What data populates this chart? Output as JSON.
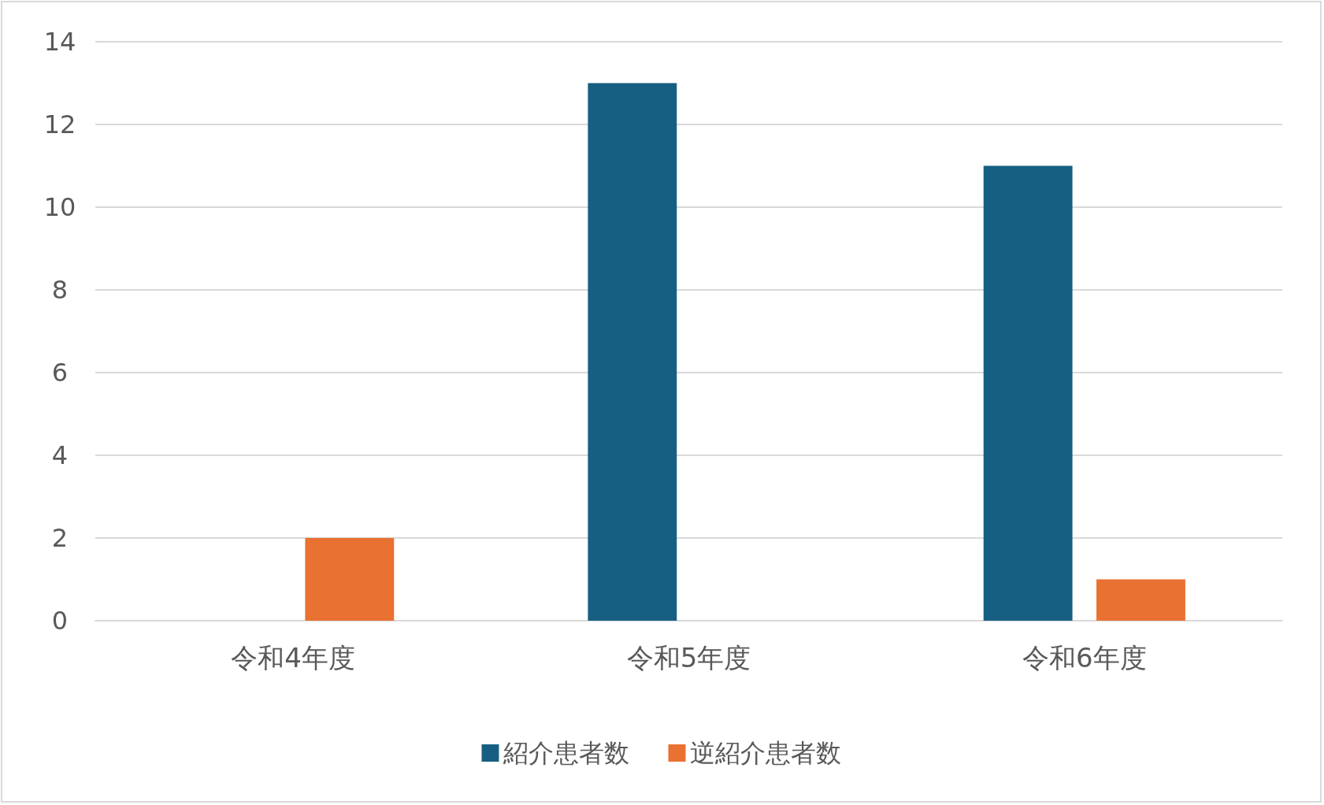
{
  "chart_data": {
    "type": "bar",
    "categories": [
      "令和4年度",
      "令和5年度",
      "令和6年度"
    ],
    "series": [
      {
        "name": "紹介患者数",
        "color": "#175f82",
        "values": [
          0,
          13,
          11
        ]
      },
      {
        "name": "逆紹介患者数",
        "color": "#e97132",
        "values": [
          2,
          0,
          1
        ]
      }
    ],
    "ylim": [
      0,
      14
    ],
    "yticks": [
      0,
      2,
      4,
      6,
      8,
      10,
      12,
      14
    ],
    "grid": "y",
    "legend": "bottom"
  }
}
